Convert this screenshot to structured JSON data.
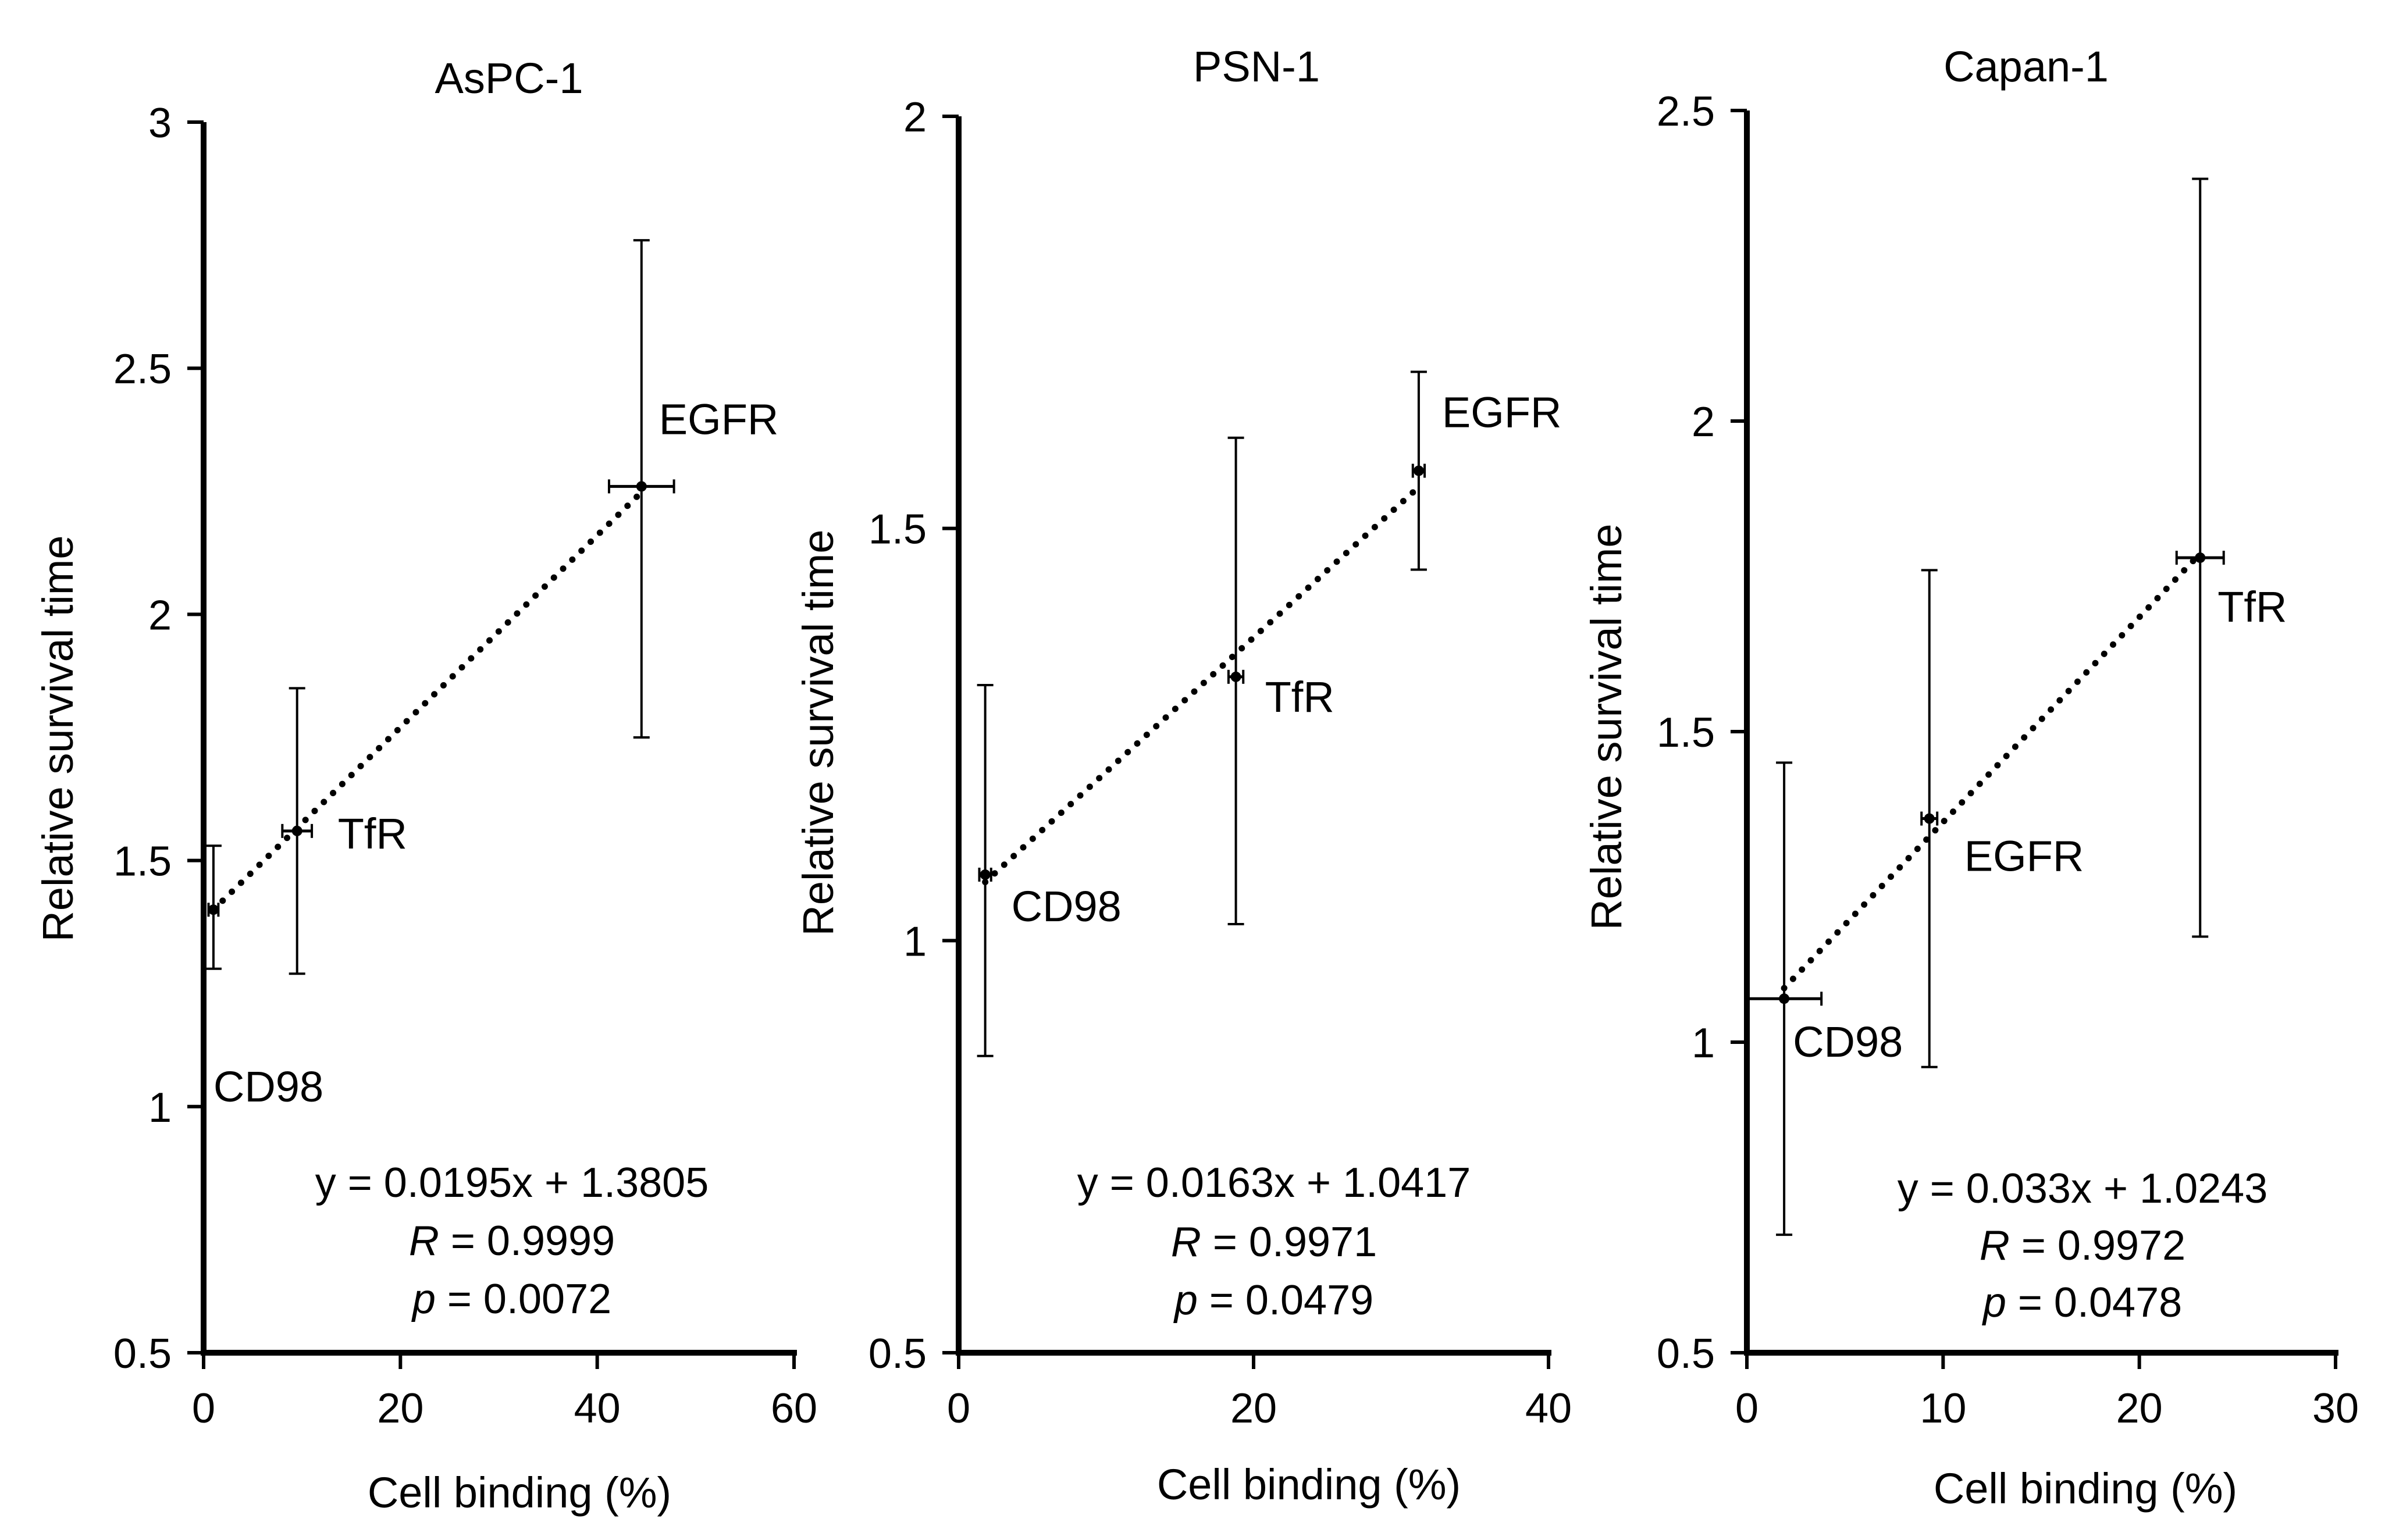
{
  "chart_data": [
    {
      "type": "scatter",
      "title": "AsPC-1",
      "xlabel": "Cell binding (%)",
      "ylabel": "Relative survival time",
      "xlim": [
        0,
        60
      ],
      "ylim": [
        0.5,
        3
      ],
      "xticks": [
        0,
        20,
        40,
        60
      ],
      "yticks": [
        0.5,
        1,
        1.5,
        2,
        2.5,
        3
      ],
      "xtick_labels": [
        "0",
        "20",
        "40",
        "60"
      ],
      "ytick_labels": [
        "0.5",
        "1",
        "1.5",
        "2",
        "2.5",
        "3"
      ],
      "trendline": {
        "slope": 0.0195,
        "intercept": 1.3805,
        "style": "dotted"
      },
      "points": [
        {
          "label": "CD98",
          "x": 1,
          "y": 1.4,
          "xerr": 0.5,
          "yerr_low": 1.28,
          "yerr_high": 1.53
        },
        {
          "label": "TfR",
          "x": 9.5,
          "y": 1.56,
          "xerr": 1.5,
          "yerr_low": 1.27,
          "yerr_high": 1.85
        },
        {
          "label": "EGFR",
          "x": 44.5,
          "y": 2.26,
          "xerr": 3.3,
          "yerr_low": 1.75,
          "yerr_high": 2.76
        }
      ],
      "annotation": {
        "equation": "y = 0.0195x + 1.3805",
        "r_label": "R",
        "r_value": " = 0.9999",
        "p_label": "p",
        "p_value": "  = 0.0072"
      }
    },
    {
      "type": "scatter",
      "title": "PSN-1",
      "xlabel": "Cell binding (%)",
      "ylabel": "Relative survival time",
      "xlim": [
        0,
        40
      ],
      "ylim": [
        0.5,
        2
      ],
      "xticks": [
        0,
        20,
        40
      ],
      "yticks": [
        0.5,
        1,
        1.5,
        2
      ],
      "xtick_labels": [
        "0",
        "20",
        "40"
      ],
      "ytick_labels": [
        "0.5",
        "1",
        "1.5",
        "2"
      ],
      "trendline": {
        "slope": 0.0163,
        "intercept": 1.0417,
        "style": "dotted"
      },
      "points": [
        {
          "label": "CD98",
          "x": 1.8,
          "y": 1.08,
          "xerr": 0.4,
          "yerr_low": 0.86,
          "yerr_high": 1.31
        },
        {
          "label": "TfR",
          "x": 18.8,
          "y": 1.32,
          "xerr": 0.5,
          "yerr_low": 1.02,
          "yerr_high": 1.61
        },
        {
          "label": "EGFR",
          "x": 31.2,
          "y": 1.57,
          "xerr": 0.4,
          "yerr_low": 1.45,
          "yerr_high": 1.69
        }
      ],
      "annotation": {
        "equation": "y = 0.0163x + 1.0417",
        "r_label": "R",
        "r_value": " = 0.9971",
        "p_label": "p",
        "p_value": "  = 0.0479"
      }
    },
    {
      "type": "scatter",
      "title": "Capan-1",
      "xlabel": "Cell binding (%)",
      "ylabel": "Relative survival time",
      "xlim": [
        0,
        30
      ],
      "ylim": [
        0.5,
        2.5
      ],
      "xticks": [
        0,
        10,
        20,
        30
      ],
      "yticks": [
        0.5,
        1,
        1.5,
        2,
        2.5
      ],
      "xtick_labels": [
        "0",
        "10",
        "20",
        "30"
      ],
      "ytick_labels": [
        "0.5",
        "1",
        "1.5",
        "2",
        "2.5"
      ],
      "trendline": {
        "slope": 0.033,
        "intercept": 1.0243,
        "style": "dotted"
      },
      "points": [
        {
          "label": "CD98",
          "x": 1.9,
          "y": 1.07,
          "xerr": 1.9,
          "yerr_low": 0.69,
          "yerr_high": 1.45
        },
        {
          "label": "EGFR",
          "x": 9.3,
          "y": 1.36,
          "xerr": 0.4,
          "yerr_low": 0.96,
          "yerr_high": 1.76
        },
        {
          "label": "TfR",
          "x": 23.1,
          "y": 1.78,
          "xerr": 1.2,
          "yerr_low": 1.17,
          "yerr_high": 2.39
        }
      ],
      "annotation": {
        "equation": "y = 0.033x + 1.0243",
        "r_label": "R",
        "r_value": " = 0.9972",
        "p_label": "p",
        "p_value": " = 0.0478"
      }
    }
  ]
}
